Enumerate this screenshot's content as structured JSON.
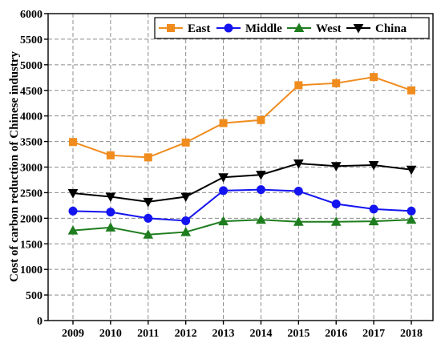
{
  "chart_data": {
    "type": "line",
    "categories": [
      "2009",
      "2010",
      "2011",
      "2012",
      "2013",
      "2014",
      "2015",
      "2016",
      "2017",
      "2018"
    ],
    "ylabel": "Cost of carbon reduction of Chinese industry",
    "xlabel": "",
    "ylim": [
      0,
      6000
    ],
    "yticks": [
      0,
      500,
      1000,
      1500,
      2000,
      2500,
      3000,
      3500,
      4000,
      4500,
      5000,
      5500,
      6000
    ],
    "grid": true,
    "legend_position": "top",
    "series": [
      {
        "name": "East",
        "color": "#F08C1E",
        "marker": "square",
        "values": [
          3490,
          3230,
          3190,
          3480,
          3860,
          3920,
          4600,
          4640,
          4760,
          4500
        ]
      },
      {
        "name": "Middle",
        "color": "#1414F0",
        "marker": "circle",
        "values": [
          2140,
          2120,
          2000,
          1950,
          2540,
          2560,
          2530,
          2280,
          2180,
          2140
        ]
      },
      {
        "name": "West",
        "color": "#1E7D1E",
        "marker": "triangle-up",
        "values": [
          1760,
          1820,
          1680,
          1730,
          1940,
          1970,
          1930,
          1930,
          1940,
          1970
        ]
      },
      {
        "name": "China",
        "color": "#000000",
        "marker": "triangle-down",
        "values": [
          2490,
          2420,
          2320,
          2420,
          2800,
          2850,
          3070,
          3020,
          3040,
          2950
        ]
      }
    ]
  }
}
